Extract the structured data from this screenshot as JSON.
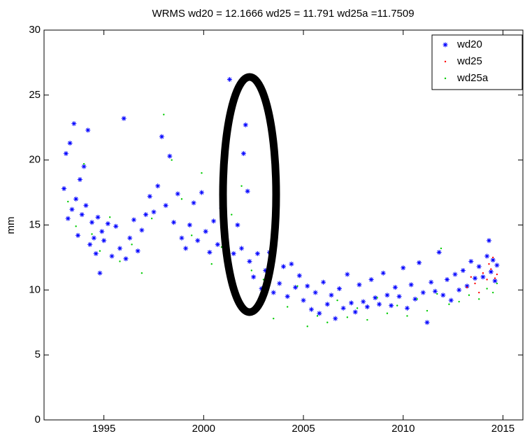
{
  "chart_data": {
    "type": "scatter",
    "title": "WRMS  wd20 = 12.1666 wd25 = 11.791 wd25a =11.7509",
    "y_label": "mm",
    "xlim": [
      1992,
      2016
    ],
    "ylim": [
      0,
      30
    ],
    "xticks": [
      1995,
      2000,
      2005,
      2010,
      2015
    ],
    "yticks": [
      0,
      5,
      10,
      15,
      20,
      25,
      30
    ],
    "legend": "upper right",
    "series": [
      {
        "name": "wd20",
        "color": "#0000ff",
        "marker": "asterisk",
        "x": [
          1993.0,
          1993.1,
          1993.2,
          1993.3,
          1993.4,
          1993.5,
          1993.6,
          1993.7,
          1993.8,
          1993.9,
          1994.0,
          1994.1,
          1994.2,
          1994.3,
          1994.4,
          1994.5,
          1994.6,
          1994.7,
          1994.8,
          1994.9,
          1995.0,
          1995.2,
          1995.4,
          1995.6,
          1995.8,
          1996.0,
          1996.1,
          1996.3,
          1996.5,
          1996.7,
          1996.9,
          1997.1,
          1997.3,
          1997.5,
          1997.7,
          1997.9,
          1998.1,
          1998.3,
          1998.5,
          1998.7,
          1998.9,
          1999.1,
          1999.3,
          1999.5,
          1999.7,
          1999.9,
          2000.1,
          2000.3,
          2000.5,
          2000.7,
          2000.9,
          2001.1,
          2001.3,
          2001.5,
          2001.7,
          2001.9,
          2002.0,
          2002.1,
          2002.2,
          2002.3,
          2002.5,
          2002.7,
          2002.9,
          2003.1,
          2003.3,
          2003.5,
          2003.6,
          2003.8,
          2004.0,
          2004.2,
          2004.4,
          2004.6,
          2004.8,
          2005.0,
          2005.2,
          2005.4,
          2005.6,
          2005.8,
          2006.0,
          2006.2,
          2006.4,
          2006.6,
          2006.8,
          2007.0,
          2007.2,
          2007.4,
          2007.6,
          2007.8,
          2008.0,
          2008.2,
          2008.4,
          2008.6,
          2008.8,
          2009.0,
          2009.2,
          2009.4,
          2009.6,
          2009.8,
          2010.0,
          2010.2,
          2010.4,
          2010.6,
          2010.8,
          2011.0,
          2011.2,
          2011.4,
          2011.6,
          2011.8,
          2012.0,
          2012.2,
          2012.4,
          2012.6,
          2012.8,
          2013.0,
          2013.2,
          2013.4,
          2013.6,
          2013.8,
          2014.0,
          2014.2,
          2014.3,
          2014.4,
          2014.5,
          2014.6,
          2014.7
        ],
        "values": [
          17.8,
          20.5,
          15.5,
          21.3,
          16.2,
          22.8,
          17.0,
          14.2,
          18.5,
          15.8,
          19.5,
          16.5,
          22.3,
          13.5,
          15.2,
          14.0,
          12.8,
          15.6,
          11.3,
          14.5,
          13.8,
          15.1,
          12.6,
          14.9,
          13.2,
          23.2,
          12.4,
          14.0,
          15.4,
          13.0,
          14.6,
          15.8,
          17.2,
          16.0,
          18.0,
          21.8,
          16.5,
          20.3,
          15.2,
          17.4,
          14.0,
          13.2,
          15.0,
          16.7,
          13.8,
          17.5,
          14.5,
          12.9,
          15.3,
          13.5,
          16.3,
          14.0,
          26.2,
          12.8,
          15.0,
          13.2,
          20.5,
          22.7,
          17.6,
          12.2,
          11.0,
          12.8,
          10.1,
          11.5,
          12.9,
          9.8,
          16.0,
          10.5,
          11.8,
          9.5,
          12.0,
          10.2,
          11.1,
          9.2,
          10.3,
          8.5,
          9.8,
          8.2,
          10.6,
          8.9,
          9.6,
          7.8,
          10.1,
          8.6,
          11.2,
          9.0,
          8.3,
          10.4,
          9.1,
          8.7,
          10.8,
          9.4,
          8.9,
          11.3,
          9.6,
          8.8,
          10.2,
          9.5,
          11.7,
          8.6,
          10.4,
          9.3,
          12.1,
          9.8,
          7.5,
          10.6,
          9.9,
          12.9,
          9.6,
          10.8,
          9.2,
          11.2,
          10.0,
          11.5,
          10.3,
          12.2,
          10.9,
          11.8,
          11.0,
          12.6,
          13.8,
          11.4,
          12.3,
          10.7,
          11.9
        ]
      },
      {
        "name": "wd25",
        "color": "#ff0000",
        "marker": "dot",
        "x": [
          2013.2,
          2013.4,
          2013.6,
          2013.8,
          2014.0,
          2014.2,
          2014.3,
          2014.4,
          2014.5,
          2014.6,
          2014.7
        ],
        "values": [
          10.2,
          11.0,
          10.5,
          9.8,
          11.3,
          10.8,
          12.0,
          11.6,
          12.5,
          10.9,
          11.2
        ]
      },
      {
        "name": "wd25a",
        "color": "#00cc00",
        "marker": "dot",
        "x": [
          1993.2,
          1993.6,
          1994.0,
          1994.4,
          1994.8,
          1995.3,
          1995.8,
          1996.4,
          1996.9,
          1997.4,
          1998.0,
          1998.4,
          1998.9,
          1999.4,
          1999.9,
          2000.4,
          2000.9,
          2001.4,
          2001.9,
          2002.4,
          2003.0,
          2003.5,
          2003.7,
          2004.2,
          2004.7,
          2005.2,
          2005.7,
          2006.2,
          2006.7,
          2007.2,
          2007.7,
          2008.2,
          2008.7,
          2009.2,
          2009.7,
          2010.2,
          2010.7,
          2011.2,
          2011.7,
          2011.9,
          2012.3,
          2012.8,
          2013.3,
          2013.8,
          2014.2,
          2014.5,
          2014.7
        ],
        "values": [
          16.8,
          14.9,
          19.7,
          14.3,
          13.0,
          15.6,
          12.2,
          13.5,
          11.3,
          15.5,
          23.5,
          20.0,
          17.0,
          14.2,
          19.0,
          12.0,
          13.3,
          15.8,
          18.0,
          11.5,
          10.8,
          7.8,
          14.8,
          8.7,
          10.3,
          7.2,
          8.0,
          7.5,
          9.2,
          7.9,
          8.6,
          7.7,
          9.4,
          8.2,
          8.8,
          8.0,
          9.3,
          8.4,
          9.7,
          13.2,
          8.9,
          9.1,
          9.6,
          9.3,
          10.1,
          9.8,
          10.5
        ]
      }
    ]
  }
}
